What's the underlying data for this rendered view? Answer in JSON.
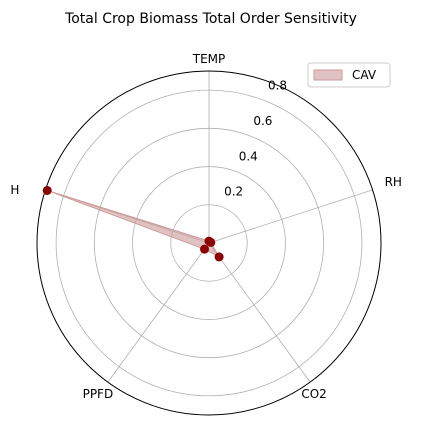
{
  "chart_data": {
    "type": "radar",
    "title": "Total Crop Biomass Total Order Sensitivity",
    "axes": [
      "TEMP",
      "RH",
      "CO2",
      "PPFD",
      "H"
    ],
    "rlim": [
      0,
      0.9
    ],
    "r_ticks": [
      0.2,
      0.4,
      0.6,
      0.8
    ],
    "r_tick_labels": [
      "0.2",
      "0.4",
      "0.6",
      "0.8"
    ],
    "grid": true,
    "legend_position": "top-right",
    "series": [
      {
        "name": "CAV",
        "values": [
          0.01,
          0.01,
          0.09,
          0.04,
          0.89
        ],
        "color": "#8b0000",
        "fill_color": "#cd9a9a"
      }
    ]
  }
}
